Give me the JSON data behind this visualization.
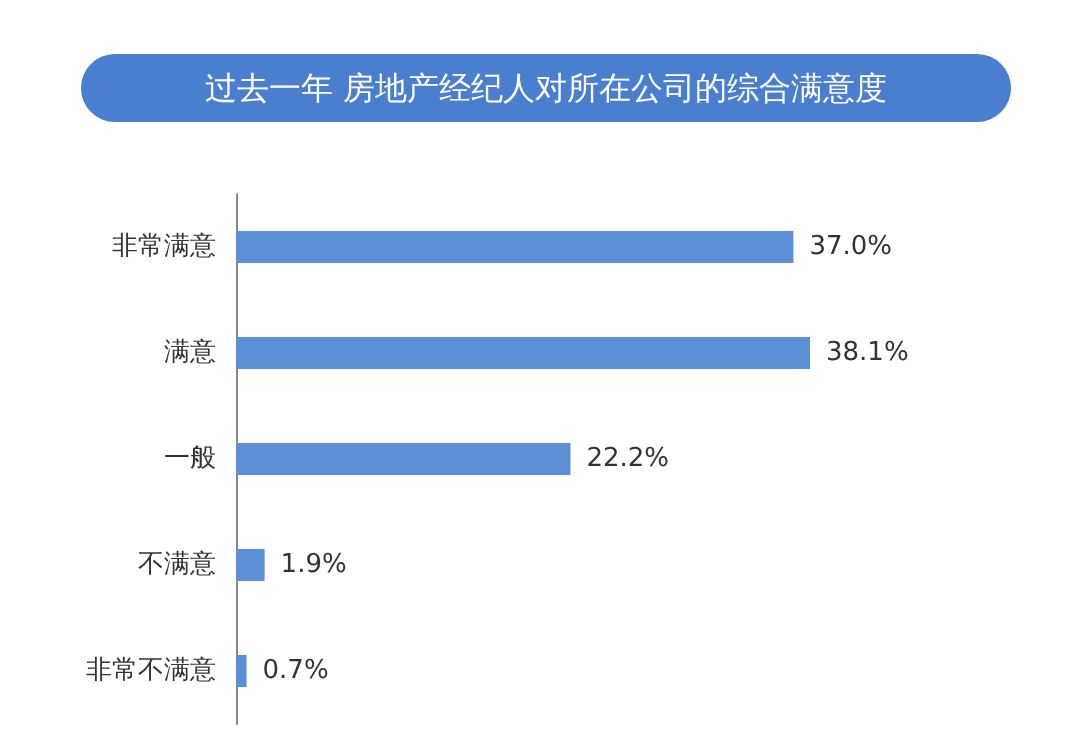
{
  "chart_data": {
    "type": "bar",
    "orientation": "horizontal",
    "title": "过去一年 房地产经纪人对所在公司的综合满意度",
    "categories": [
      "非常满意",
      "满意",
      "一般",
      "不满意",
      "非常不满意"
    ],
    "values": [
      37.0,
      38.1,
      22.2,
      1.9,
      0.7
    ],
    "value_labels": [
      "37.0%",
      "38.1%",
      "22.2%",
      "1.9%",
      "0.7%"
    ],
    "color": "#5b8fd6",
    "grid": false
  }
}
